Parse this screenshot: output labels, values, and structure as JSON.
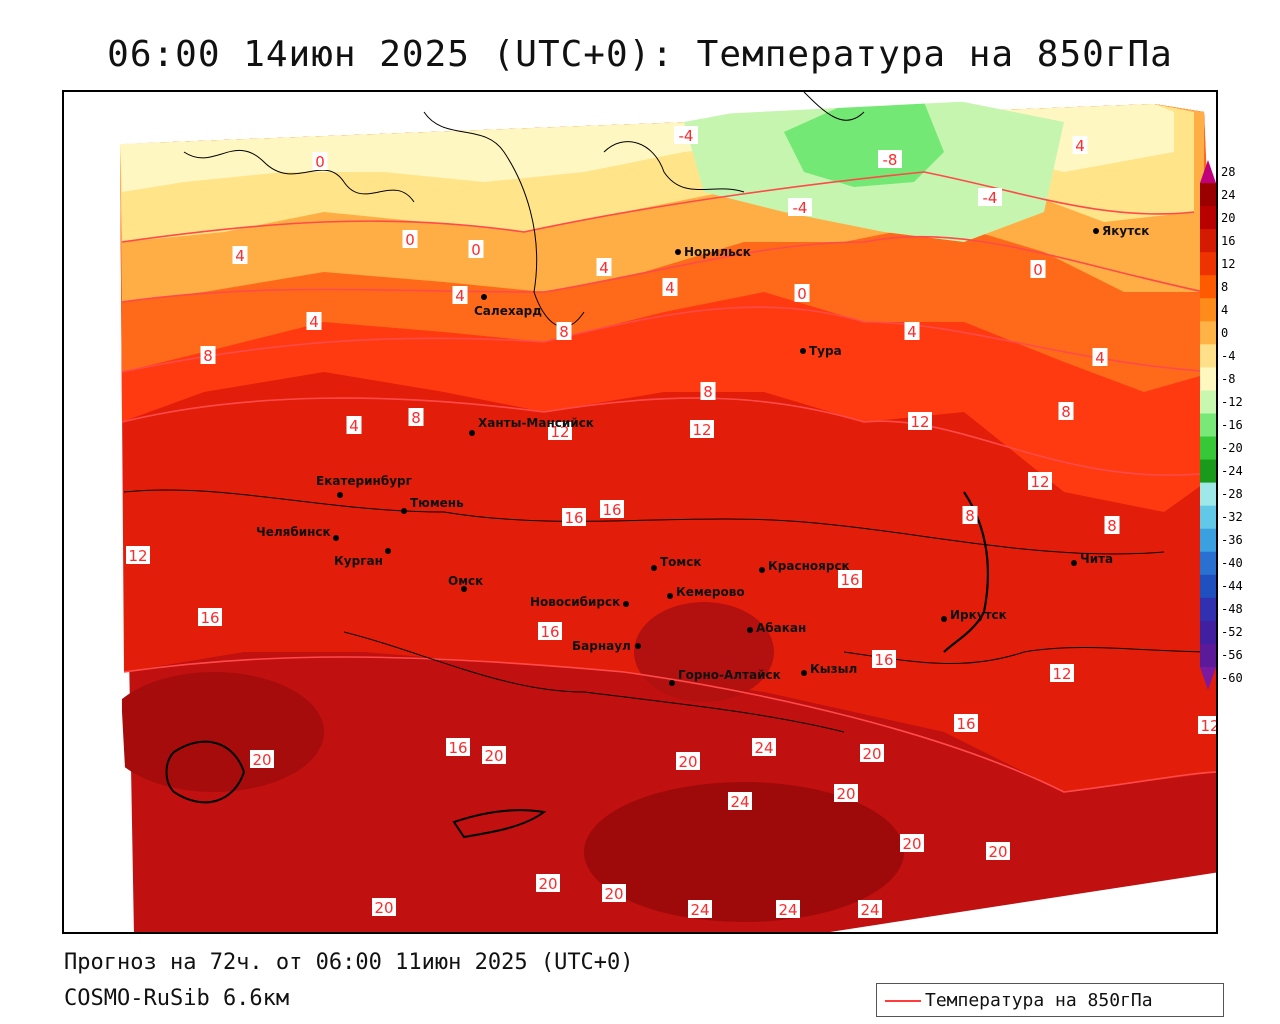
{
  "title": "06:00 14июн 2025 (UTC+0): Температура на 850гПа",
  "footer": {
    "forecast": "Прогноз на 72ч. от 06:00 11июн 2025 (UTC+0)",
    "model": "COSMO-RuSib 6.6км"
  },
  "legend": {
    "label": "Температура на 850гПа",
    "color": "#ff3b3b"
  },
  "colorbar": {
    "ticks": [
      "28",
      "24",
      "20",
      "16",
      "12",
      "8",
      "4",
      "0",
      "-4",
      "-8",
      "-12",
      "-16",
      "-20",
      "-24",
      "-28",
      "-32",
      "-36",
      "-40",
      "-44",
      "-48",
      "-52",
      "-56",
      "-60"
    ],
    "colors": [
      "#c0007a",
      "#9a0000",
      "#b80000",
      "#d41a00",
      "#ef3300",
      "#ff5a00",
      "#ff8c1a",
      "#ffb347",
      "#ffe08a",
      "#fff7c0",
      "#c8f7b0",
      "#78e878",
      "#36c836",
      "#1a9a1a",
      "#9ee8e8",
      "#62c8e8",
      "#3aa0e0",
      "#2a70d0",
      "#2050c0",
      "#3030b0",
      "#4020a0",
      "#5a1a9a",
      "#7a1aa0"
    ]
  },
  "cities": [
    {
      "name": "Якутск"
    },
    {
      "name": "Норильск"
    },
    {
      "name": "Салехард"
    },
    {
      "name": "Тура"
    },
    {
      "name": "Ханты-Мансийск"
    },
    {
      "name": "Екатеринбург"
    },
    {
      "name": "Тюмень"
    },
    {
      "name": "Челябинск"
    },
    {
      "name": "Курган"
    },
    {
      "name": "Омск"
    },
    {
      "name": "Новосибирск"
    },
    {
      "name": "Томск"
    },
    {
      "name": "Красноярск"
    },
    {
      "name": "Кемерово"
    },
    {
      "name": "Абакан"
    },
    {
      "name": "Барнаул"
    },
    {
      "name": "Горно-Алтайск"
    },
    {
      "name": "Кызыл"
    },
    {
      "name": "Иркутск"
    },
    {
      "name": "Чита"
    }
  ],
  "contour_labels": [
    "-8",
    "-4",
    "-4",
    "-4",
    "0",
    "0",
    "0",
    "0",
    "0",
    "4",
    "4",
    "4",
    "4",
    "4",
    "4",
    "4",
    "4",
    "4",
    "8",
    "8",
    "8",
    "8",
    "8",
    "8",
    "8",
    "12",
    "12",
    "12",
    "12",
    "12",
    "12",
    "12",
    "16",
    "16",
    "16",
    "16",
    "16",
    "16",
    "16",
    "16",
    "20",
    "20",
    "20",
    "20",
    "20",
    "20",
    "20",
    "20",
    "20",
    "20",
    "24",
    "24",
    "24",
    "24",
    "24"
  ]
}
